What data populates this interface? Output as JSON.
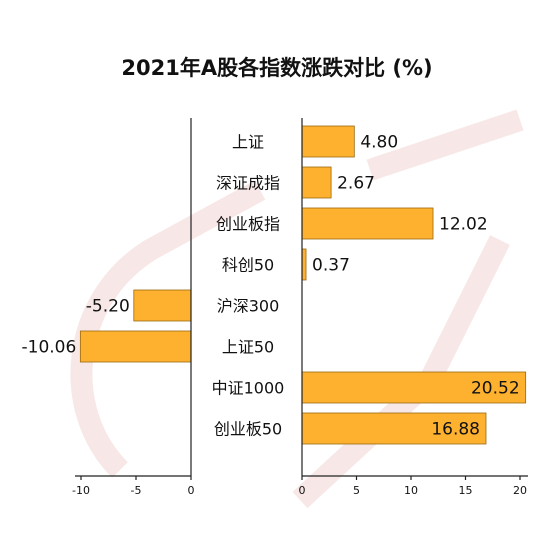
{
  "chart_data": {
    "type": "bar",
    "orientation": "horizontal",
    "title": "2021年A股各指数涨跌对比 (%)",
    "categories": [
      "上证",
      "深证成指",
      "创业板指",
      "科创50",
      "沪深300",
      "上证50",
      "中证1000",
      "创业板50"
    ],
    "values": [
      4.8,
      2.67,
      12.02,
      0.37,
      -5.2,
      -10.06,
      20.52,
      16.88
    ],
    "value_labels": [
      "4.80",
      "2.67",
      "12.02",
      "0.37",
      "-5.20",
      "-10.06",
      "20.52",
      "16.88"
    ],
    "negative_ticks": [
      "-10",
      "-5",
      "0"
    ],
    "positive_ticks": [
      "0",
      "5",
      "10",
      "15",
      "20"
    ],
    "xlim_negative": [
      -10,
      0
    ],
    "xlim_positive": [
      0,
      20
    ],
    "bar_color": "#FDB12F",
    "bar_edge_color": "#9a6a10",
    "grid": false
  }
}
